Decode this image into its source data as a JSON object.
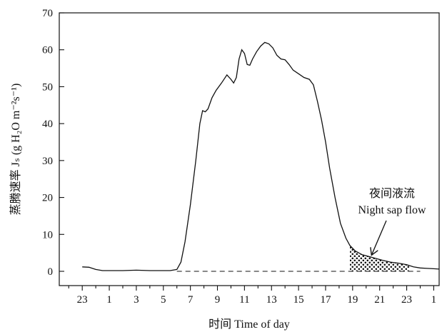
{
  "chart_data": {
    "type": "line",
    "xlabel": "时间  Time of day",
    "ylabel": "蒸腾速率 Jₛ (g H₂O m⁻²s⁻¹)",
    "ylim": [
      0,
      70
    ],
    "xlim": [
      21.3,
      49.4
    ],
    "y_ticks": [
      0,
      10,
      20,
      30,
      40,
      50,
      60,
      70
    ],
    "x_ticks": [
      {
        "x": 23,
        "label": "23"
      },
      {
        "x": 25,
        "label": "1"
      },
      {
        "x": 27,
        "label": "3"
      },
      {
        "x": 29,
        "label": "5"
      },
      {
        "x": 31,
        "label": "7"
      },
      {
        "x": 33,
        "label": "9"
      },
      {
        "x": 35,
        "label": "11"
      },
      {
        "x": 37,
        "label": "13"
      },
      {
        "x": 39,
        "label": "15"
      },
      {
        "x": 41,
        "label": "17"
      },
      {
        "x": 43,
        "label": "19"
      },
      {
        "x": 45,
        "label": "21"
      },
      {
        "x": 47,
        "label": "23"
      },
      {
        "x": 49,
        "label": "1"
      }
    ],
    "grid": false,
    "series": [
      {
        "color": "#111111",
        "points": [
          [
            23.0,
            1.2
          ],
          [
            23.5,
            1.1
          ],
          [
            24.0,
            0.5
          ],
          [
            24.5,
            0.2
          ],
          [
            25.0,
            0.2
          ],
          [
            26.0,
            0.2
          ],
          [
            27.0,
            0.3
          ],
          [
            28.0,
            0.2
          ],
          [
            29.0,
            0.2
          ],
          [
            29.5,
            0.2
          ],
          [
            30.0,
            0.5
          ],
          [
            30.3,
            2.5
          ],
          [
            30.6,
            8.0
          ],
          [
            31.0,
            18.0
          ],
          [
            31.4,
            30.0
          ],
          [
            31.7,
            40.0
          ],
          [
            31.9,
            43.5
          ],
          [
            32.1,
            43.2
          ],
          [
            32.3,
            44.0
          ],
          [
            32.6,
            47.0
          ],
          [
            32.9,
            49.0
          ],
          [
            33.3,
            51.0
          ],
          [
            33.7,
            53.2
          ],
          [
            34.0,
            52.0
          ],
          [
            34.2,
            51.0
          ],
          [
            34.4,
            52.5
          ],
          [
            34.6,
            57.5
          ],
          [
            34.8,
            60.0
          ],
          [
            35.0,
            59.0
          ],
          [
            35.2,
            56.0
          ],
          [
            35.4,
            55.8
          ],
          [
            35.6,
            57.5
          ],
          [
            35.9,
            59.5
          ],
          [
            36.2,
            61.0
          ],
          [
            36.5,
            62.0
          ],
          [
            36.8,
            61.6
          ],
          [
            37.1,
            60.5
          ],
          [
            37.4,
            58.5
          ],
          [
            37.7,
            57.5
          ],
          [
            38.0,
            57.3
          ],
          [
            38.3,
            56.0
          ],
          [
            38.6,
            54.5
          ],
          [
            39.0,
            53.5
          ],
          [
            39.4,
            52.5
          ],
          [
            39.8,
            52.0
          ],
          [
            40.1,
            50.5
          ],
          [
            40.4,
            46.0
          ],
          [
            40.7,
            41.0
          ],
          [
            41.0,
            35.0
          ],
          [
            41.3,
            28.0
          ],
          [
            41.7,
            20.0
          ],
          [
            42.1,
            13.0
          ],
          [
            42.5,
            9.0
          ],
          [
            42.8,
            7.0
          ],
          [
            43.2,
            5.5
          ],
          [
            43.7,
            4.5
          ],
          [
            44.2,
            4.0
          ],
          [
            44.7,
            3.5
          ],
          [
            45.2,
            3.0
          ],
          [
            45.8,
            2.5
          ],
          [
            46.4,
            2.2
          ],
          [
            47.0,
            1.8
          ],
          [
            47.5,
            1.2
          ],
          [
            48.0,
            0.9
          ],
          [
            48.5,
            0.8
          ],
          [
            49.0,
            0.7
          ],
          [
            49.4,
            0.6
          ]
        ]
      }
    ],
    "baseline": {
      "style": "dashed",
      "y": 0,
      "x_range": [
        30.0,
        48.0
      ]
    },
    "night_sap_flow_region": {
      "fill": "dotted",
      "x_range": [
        42.8,
        47.2
      ]
    },
    "annotation": {
      "lines": [
        "夜间液流",
        "Night sap flow"
      ],
      "arrow_target": [
        44.4,
        4.0
      ]
    }
  }
}
